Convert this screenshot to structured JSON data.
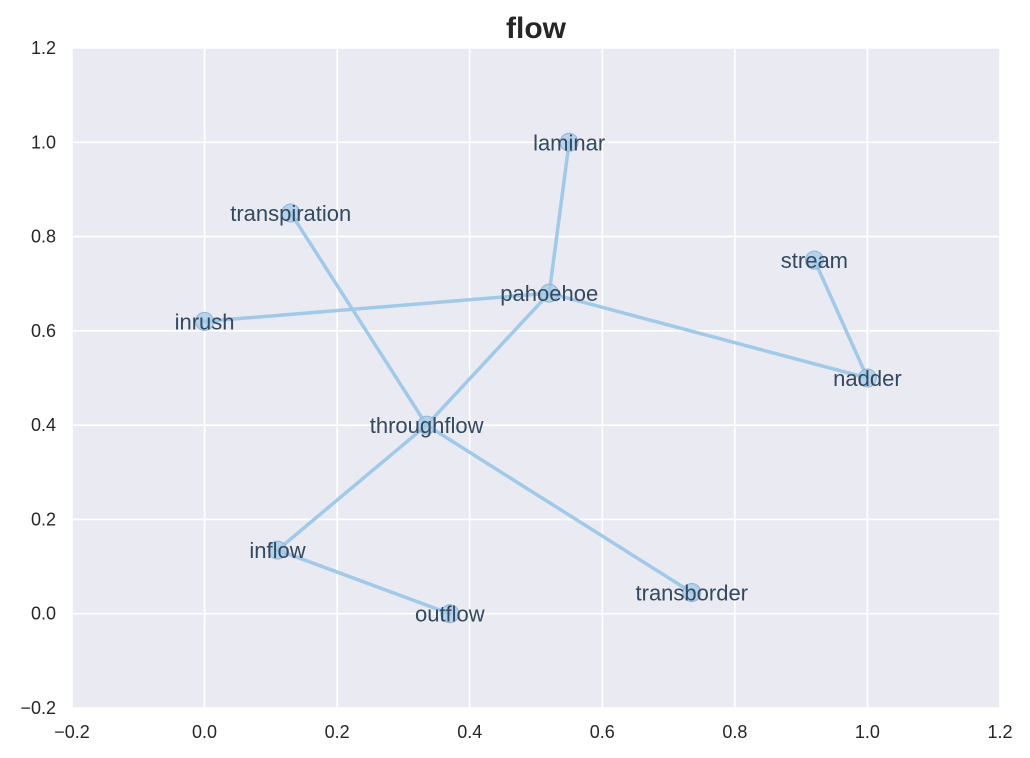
{
  "chart_data": {
    "type": "scatter",
    "title": "flow",
    "xlabel": "",
    "ylabel": "",
    "xlim": [
      -0.2,
      1.2
    ],
    "ylim": [
      -0.2,
      1.2
    ],
    "xticks": [
      "−0.2",
      "0.0",
      "0.2",
      "0.4",
      "0.6",
      "0.8",
      "1.0",
      "1.2"
    ],
    "yticks": [
      "−0.2",
      "0.0",
      "0.2",
      "0.4",
      "0.6",
      "0.8",
      "1.0",
      "1.2"
    ],
    "grid": true,
    "colors": {
      "background": "#eaeaf2",
      "grid": "#ffffff",
      "edge": "#a1c9e8",
      "node": "#a1c9e8",
      "label": "#34495e"
    },
    "nodes": [
      {
        "label": "laminar",
        "x": 0.55,
        "y": 1.0
      },
      {
        "label": "transpiration",
        "x": 0.13,
        "y": 0.85
      },
      {
        "label": "stream",
        "x": 0.92,
        "y": 0.75
      },
      {
        "label": "pahoehoe",
        "x": 0.52,
        "y": 0.68
      },
      {
        "label": "inrush",
        "x": 0.0,
        "y": 0.62
      },
      {
        "label": "nadder",
        "x": 1.0,
        "y": 0.5
      },
      {
        "label": "throughflow",
        "x": 0.335,
        "y": 0.4
      },
      {
        "label": "inflow",
        "x": 0.11,
        "y": 0.135
      },
      {
        "label": "transborder",
        "x": 0.735,
        "y": 0.045
      },
      {
        "label": "outflow",
        "x": 0.37,
        "y": 0.0
      }
    ],
    "edges": [
      [
        "laminar",
        "pahoehoe"
      ],
      [
        "pahoehoe",
        "inrush"
      ],
      [
        "pahoehoe",
        "nadder"
      ],
      [
        "pahoehoe",
        "throughflow"
      ],
      [
        "stream",
        "nadder"
      ],
      [
        "transpiration",
        "throughflow"
      ],
      [
        "throughflow",
        "inflow"
      ],
      [
        "throughflow",
        "transborder"
      ],
      [
        "inflow",
        "outflow"
      ]
    ]
  }
}
